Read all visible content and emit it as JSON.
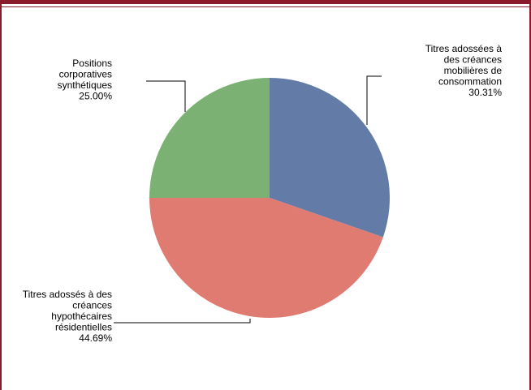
{
  "chart_data": {
    "type": "pie",
    "title": "",
    "legend": "none",
    "slices": [
      {
        "label_lines": [
          "Titres adossées à",
          "des créances",
          "mobilières de",
          "consommation"
        ],
        "percent_text": "30.31%",
        "value": 30.31,
        "color": "#627ca7"
      },
      {
        "label_lines": [
          "Titres adossés à des",
          "créances",
          "hypothécaires",
          "résidentielles"
        ],
        "percent_text": "44.69%",
        "value": 44.69,
        "color": "#e07b72"
      },
      {
        "label_lines": [
          "Positions",
          "corporatives",
          "synthétiques"
        ],
        "percent_text": "25.00%",
        "value": 25.0,
        "color": "#7bb173"
      }
    ]
  },
  "colors": {
    "frame": "#8a1b2b",
    "leader_line": "#000000"
  }
}
